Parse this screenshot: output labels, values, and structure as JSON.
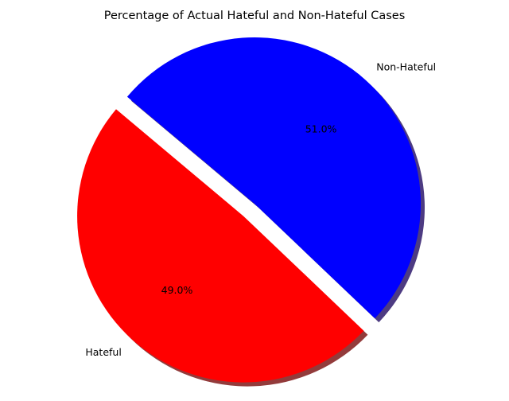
{
  "chart_data": {
    "type": "pie",
    "title": "Percentage of Actual Hateful and Non-Hateful Cases",
    "slices": [
      {
        "label": "Hateful",
        "value": 49.0,
        "pct_text": "49.0%",
        "color": "#ff0000",
        "exploded": true
      },
      {
        "label": "Non-Hateful",
        "value": 51.0,
        "pct_text": "51.0%",
        "color": "#0000ff",
        "exploded": false
      }
    ],
    "shadow": true,
    "legend": "none",
    "grid": false
  }
}
